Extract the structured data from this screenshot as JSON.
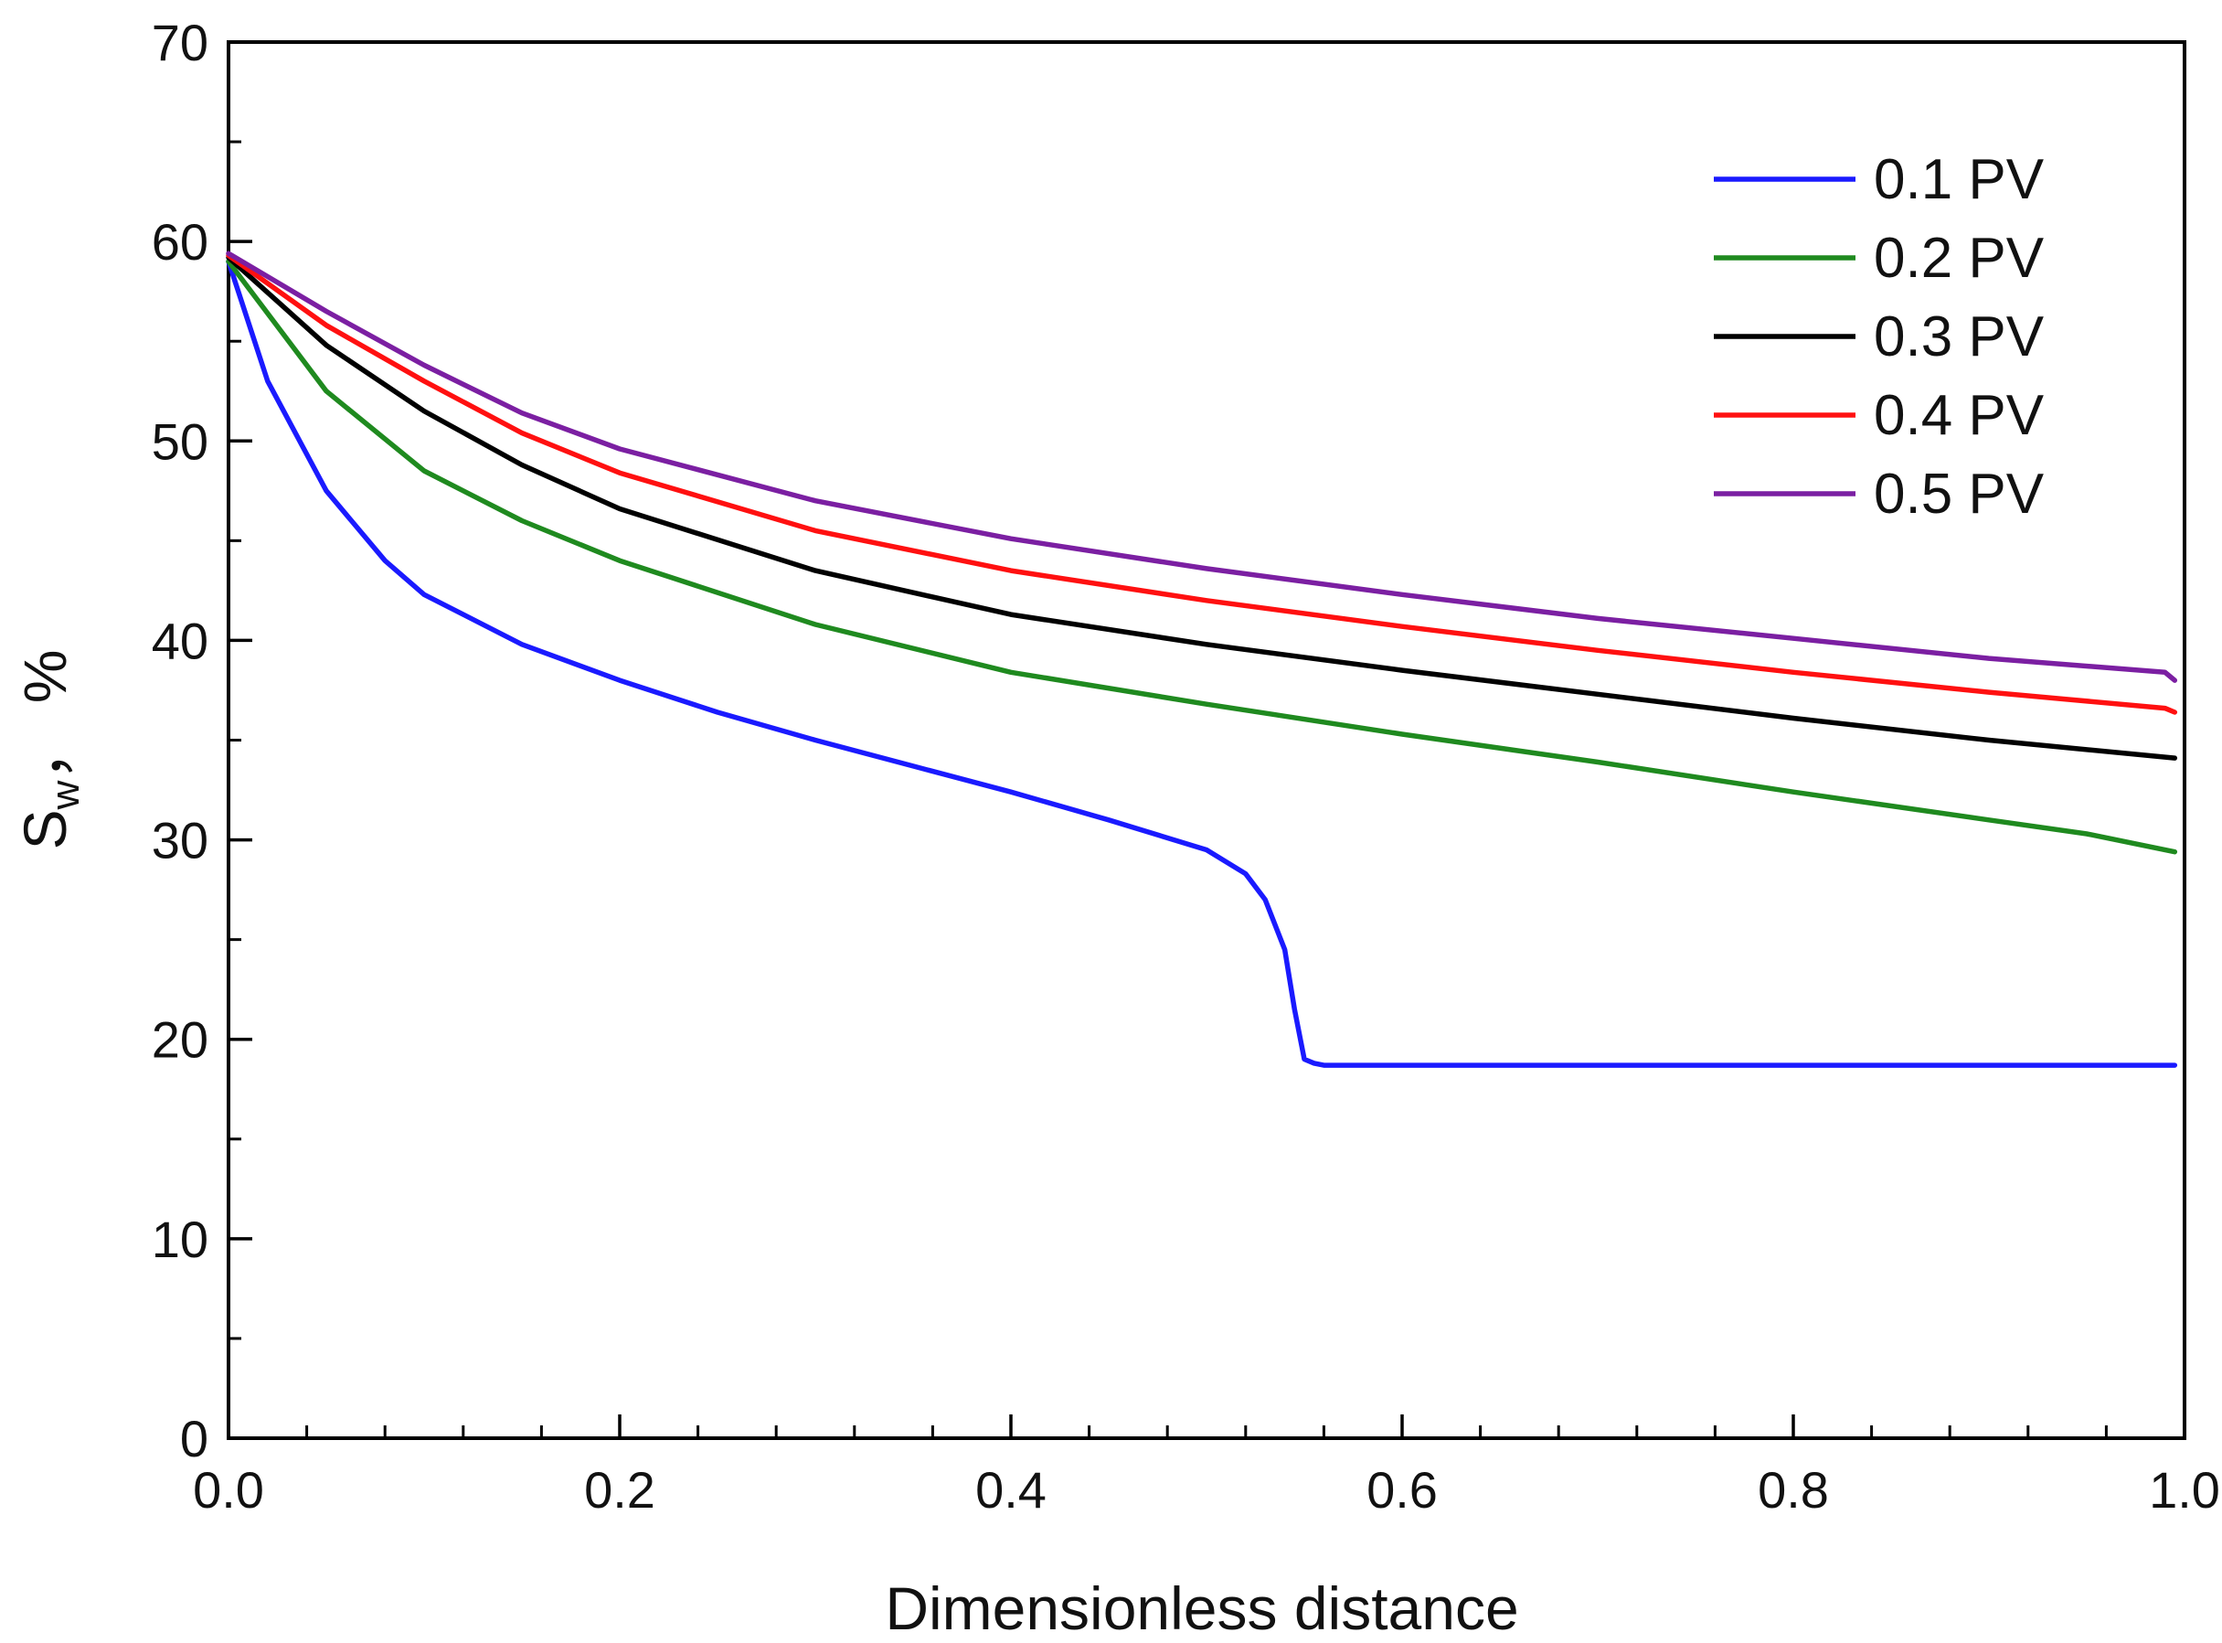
{
  "chart_data": {
    "type": "line",
    "title": "",
    "xlabel": "Dimensionless distance",
    "ylabel_main": "S",
    "ylabel_sub": "w",
    "ylabel_unit": "，  %",
    "xlim": [
      0.0,
      1.0
    ],
    "ylim": [
      0,
      70
    ],
    "x_ticks": [
      0.0,
      0.2,
      0.4,
      0.6,
      0.8,
      1.0
    ],
    "x_tick_labels": [
      "0.0",
      "0.2",
      "0.4",
      "0.6",
      "0.8",
      "1.0"
    ],
    "y_ticks": [
      0,
      10,
      20,
      30,
      40,
      50,
      60,
      70
    ],
    "y_tick_labels": [
      "0",
      "10",
      "20",
      "30",
      "40",
      "50",
      "60",
      "70"
    ],
    "grid": false,
    "legend_position": "top-right",
    "series": [
      {
        "name": "0.1 PV",
        "color": "#1a1aff",
        "x": [
          0.0,
          0.02,
          0.05,
          0.08,
          0.1,
          0.15,
          0.2,
          0.25,
          0.3,
          0.35,
          0.4,
          0.45,
          0.5,
          0.52,
          0.53,
          0.54,
          0.545,
          0.55,
          0.555,
          0.56,
          0.6,
          0.7,
          0.8,
          0.9,
          0.995
        ],
        "y": [
          59.0,
          53.0,
          47.5,
          44.0,
          42.3,
          39.8,
          38.0,
          36.4,
          35.0,
          33.7,
          32.4,
          31.0,
          29.5,
          28.3,
          27.0,
          24.5,
          21.5,
          19.0,
          18.8,
          18.7,
          18.7,
          18.7,
          18.7,
          18.7,
          18.7
        ]
      },
      {
        "name": "0.2 PV",
        "color": "#1f8a1f",
        "x": [
          0.0,
          0.05,
          0.1,
          0.15,
          0.2,
          0.3,
          0.4,
          0.5,
          0.6,
          0.7,
          0.8,
          0.9,
          0.95,
          0.995
        ],
        "y": [
          59.0,
          52.5,
          48.5,
          46.0,
          44.0,
          40.8,
          38.4,
          36.8,
          35.3,
          33.9,
          32.4,
          31.0,
          30.3,
          29.4
        ]
      },
      {
        "name": "0.3 PV",
        "color": "#000000",
        "x": [
          0.0,
          0.05,
          0.1,
          0.15,
          0.2,
          0.3,
          0.4,
          0.5,
          0.6,
          0.7,
          0.8,
          0.9,
          0.995
        ],
        "y": [
          59.2,
          54.8,
          51.5,
          48.8,
          46.6,
          43.5,
          41.3,
          39.8,
          38.5,
          37.3,
          36.1,
          35.0,
          34.1
        ]
      },
      {
        "name": "0.4 PV",
        "color": "#ff1010",
        "x": [
          0.0,
          0.05,
          0.1,
          0.15,
          0.2,
          0.3,
          0.4,
          0.5,
          0.6,
          0.7,
          0.8,
          0.9,
          0.99,
          0.995
        ],
        "y": [
          59.3,
          55.8,
          53.0,
          50.4,
          48.4,
          45.5,
          43.5,
          42.0,
          40.7,
          39.5,
          38.4,
          37.4,
          36.6,
          36.4
        ]
      },
      {
        "name": "0.5 PV",
        "color": "#7b1fa2",
        "x": [
          0.0,
          0.05,
          0.1,
          0.15,
          0.2,
          0.3,
          0.4,
          0.5,
          0.6,
          0.7,
          0.8,
          0.9,
          0.99,
          0.995
        ],
        "y": [
          59.4,
          56.5,
          53.8,
          51.4,
          49.6,
          47.0,
          45.1,
          43.6,
          42.3,
          41.1,
          40.1,
          39.1,
          38.4,
          38.0
        ]
      }
    ]
  }
}
